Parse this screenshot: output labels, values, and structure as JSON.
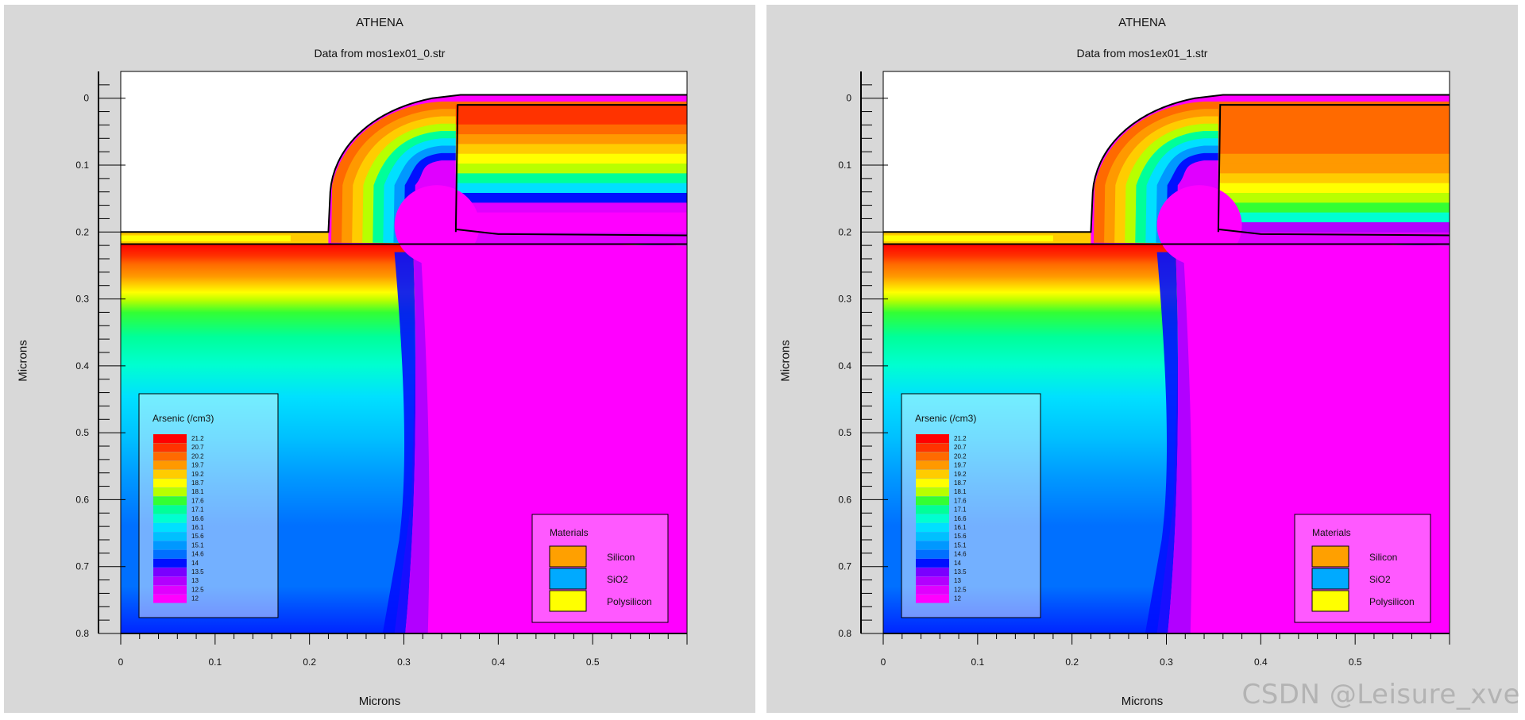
{
  "panels": [
    {
      "title": "ATHENA",
      "subtitle": "Data from mos1ex01_0.str"
    },
    {
      "title": "ATHENA",
      "subtitle": "Data from mos1ex01_1.str"
    }
  ],
  "watermark": "CSDN @Leisure_xve",
  "chart_data": [
    {
      "type": "heatmap",
      "title": "ATHENA",
      "subtitle": "Data from mos1ex01_0.str",
      "xlabel": "Microns",
      "ylabel": "Microns",
      "xlim": [
        0,
        0.6
      ],
      "ylim": [
        0.8,
        -0.04
      ],
      "x_ticks": [
        "0",
        "0.1",
        "0.2",
        "0.3",
        "0.4",
        "0.5"
      ],
      "y_ticks": [
        "0",
        "0.1",
        "0.2",
        "0.3",
        "0.4",
        "0.5",
        "0.6",
        "0.7",
        "0.8"
      ],
      "legend_title": "Arsenic (/cm3)",
      "legend_levels": [
        "21.2",
        "20.7",
        "20.2",
        "19.7",
        "19.2",
        "18.7",
        "18.1",
        "17.6",
        "17.1",
        "16.6",
        "16.1",
        "15.6",
        "15.1",
        "14.6",
        "14",
        "13.5",
        "13",
        "12.5",
        "12"
      ],
      "legend_colors": [
        "#ff0000",
        "#ff3300",
        "#ff6a00",
        "#ff9900",
        "#ffcc00",
        "#ffff00",
        "#b8ff00",
        "#33ff33",
        "#00ff99",
        "#00ffd0",
        "#00e0ff",
        "#00c0ff",
        "#0098ff",
        "#0070ff",
        "#0010ff",
        "#7a00ff",
        "#b200ff",
        "#e000ff",
        "#ff00ff"
      ],
      "materials_title": "Materials",
      "materials": [
        {
          "name": "Silicon",
          "color": "#ffa000"
        },
        {
          "name": "SiO2",
          "color": "#00aaff"
        },
        {
          "name": "Polysilicon",
          "color": "#ffff00"
        }
      ],
      "gate_doping": "partial"
    },
    {
      "type": "heatmap",
      "title": "ATHENA",
      "subtitle": "Data from mos1ex01_1.str",
      "xlabel": "Microns",
      "ylabel": "Microns",
      "xlim": [
        0,
        0.6
      ],
      "ylim": [
        0.8,
        -0.04
      ],
      "x_ticks": [
        "0",
        "0.1",
        "0.2",
        "0.3",
        "0.4",
        "0.5"
      ],
      "y_ticks": [
        "0",
        "0.1",
        "0.2",
        "0.3",
        "0.4",
        "0.5",
        "0.6",
        "0.7",
        "0.8"
      ],
      "legend_title": "Arsenic (/cm3)",
      "legend_levels": [
        "21.2",
        "20.7",
        "20.2",
        "19.7",
        "19.2",
        "18.7",
        "18.1",
        "17.6",
        "17.1",
        "16.6",
        "16.1",
        "15.6",
        "15.1",
        "14.6",
        "14",
        "13.5",
        "13",
        "12.5",
        "12"
      ],
      "legend_colors": [
        "#ff0000",
        "#ff3300",
        "#ff6a00",
        "#ff9900",
        "#ffcc00",
        "#ffff00",
        "#b8ff00",
        "#33ff33",
        "#00ff99",
        "#00ffd0",
        "#00e0ff",
        "#00c0ff",
        "#0098ff",
        "#0070ff",
        "#0010ff",
        "#7a00ff",
        "#b200ff",
        "#e000ff",
        "#ff00ff"
      ],
      "materials_title": "Materials",
      "materials": [
        {
          "name": "Silicon",
          "color": "#ffa000"
        },
        {
          "name": "SiO2",
          "color": "#00aaff"
        },
        {
          "name": "Polysilicon",
          "color": "#ffff00"
        }
      ],
      "gate_doping": "full"
    }
  ]
}
